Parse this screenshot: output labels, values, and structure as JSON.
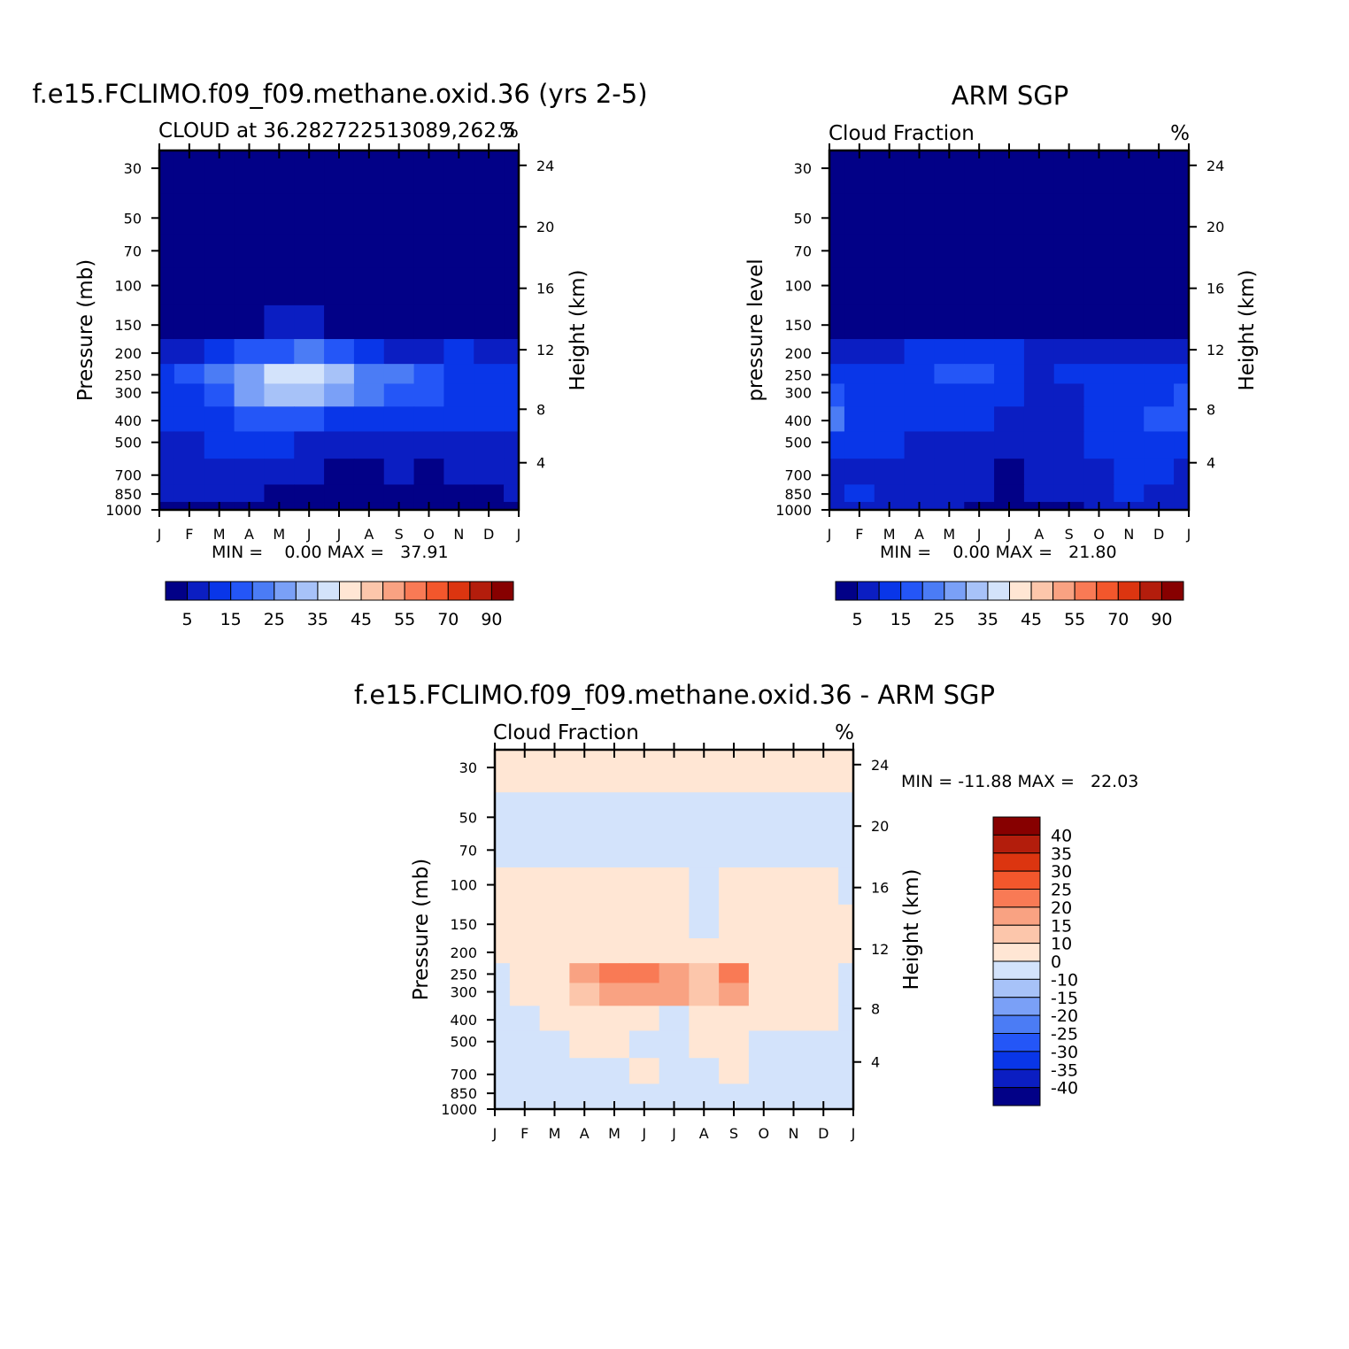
{
  "panels": {
    "model": {
      "main_title": "f.e15.FCLIMO.f09_f09.methane.oxid.36 (yrs 2-5)",
      "left_string": "CLOUD at 36.282722513089,262.5",
      "right_string": "%",
      "ylabel_left": "Pressure (mb)",
      "ylabel_right": "Height (km)",
      "minmax": "MIN =    0.00 MAX =   37.91"
    },
    "obs": {
      "main_title": "ARM SGP",
      "left_string": "Cloud Fraction",
      "right_string": "%",
      "ylabel_left": "pressure level",
      "ylabel_right": "Height (km)",
      "minmax": "MIN =    0.00 MAX =   21.80"
    },
    "diff": {
      "main_title": "f.e15.FCLIMO.f09_f09.methane.oxid.36 - ARM SGP",
      "left_string": "Cloud Fraction",
      "right_string": "%",
      "ylabel_left": "Pressure (mb)",
      "ylabel_right": "Height (km)",
      "minmax": "MIN = -11.88 MAX =   22.03"
    }
  },
  "months": [
    "J",
    "F",
    "M",
    "A",
    "M",
    "J",
    "J",
    "A",
    "S",
    "O",
    "N",
    "D",
    "J"
  ],
  "pressure_ticks": [
    "30",
    "50",
    "70",
    "100",
    "150",
    "200",
    "250",
    "300",
    "400",
    "500",
    "700",
    "850",
    "1000"
  ],
  "height_ticks": [
    "24",
    "20",
    "16",
    "12",
    "8",
    "4"
  ],
  "colorbar_top": {
    "labels": [
      "5",
      "15",
      "25",
      "35",
      "45",
      "55",
      "70",
      "90"
    ],
    "colors": [
      "#020187",
      "#0b1ec2",
      "#0936e8",
      "#2456f7",
      "#4b7cf5",
      "#7aa0f7",
      "#a7c2f8",
      "#d3e3fb",
      "#ffe6d4",
      "#fcc6ab",
      "#f9a282",
      "#f97a55",
      "#f3572c",
      "#dc3510",
      "#b31d0c",
      "#870000"
    ]
  },
  "colorbar_diff": {
    "labels": [
      "40",
      "35",
      "30",
      "25",
      "20",
      "15",
      "10",
      "0",
      "-10",
      "-15",
      "-20",
      "-25",
      "-30",
      "-35",
      "-40"
    ],
    "colors": [
      "#870000",
      "#b31d0c",
      "#dc3510",
      "#f3572c",
      "#f97a55",
      "#f9a282",
      "#fcc6ab",
      "#ffe6d4",
      "#d3e3fb",
      "#a7c2f8",
      "#7aa0f7",
      "#4b7cf5",
      "#2456f7",
      "#0936e8",
      "#0b1ec2",
      "#020187"
    ]
  },
  "chart_data": [
    {
      "type": "heatmap",
      "title": "f.e15.FCLIMO.f09_f09.methane.oxid.36 (yrs 2-5)",
      "xlabel": "",
      "ylabel": "Pressure (mb)",
      "x": [
        "J",
        "F",
        "M",
        "A",
        "M",
        "J",
        "J",
        "A",
        "S",
        "O",
        "N",
        "D",
        "J"
      ],
      "y": [
        30,
        50,
        70,
        100,
        150,
        200,
        250,
        300,
        400,
        500,
        700,
        850,
        1000
      ],
      "units": "%",
      "ylim": [
        1000,
        25
      ],
      "values": [
        [
          0,
          0,
          0,
          0,
          0,
          0,
          0,
          0,
          0,
          0,
          0,
          0,
          0
        ],
        [
          0,
          0,
          0,
          0,
          0,
          0,
          0,
          0,
          0,
          0,
          0,
          0,
          0
        ],
        [
          0,
          0,
          0,
          0,
          0,
          0,
          0,
          0,
          0,
          0,
          0,
          0,
          0
        ],
        [
          0,
          0,
          0,
          0,
          0,
          0,
          0,
          0,
          0,
          0,
          0,
          0,
          0
        ],
        [
          2,
          2,
          3,
          3,
          5,
          5,
          4,
          3,
          2,
          2,
          2,
          2,
          2
        ],
        [
          8,
          9,
          12,
          15,
          18,
          20,
          15,
          10,
          9,
          9,
          10,
          9,
          8
        ],
        [
          12,
          15,
          20,
          28,
          35,
          37,
          30,
          22,
          20,
          18,
          14,
          13,
          12
        ],
        [
          12,
          14,
          18,
          25,
          30,
          32,
          28,
          22,
          19,
          16,
          14,
          13,
          12
        ],
        [
          10,
          12,
          14,
          16,
          18,
          17,
          14,
          13,
          12,
          11,
          10,
          10,
          10
        ],
        [
          8,
          9,
          10,
          11,
          10,
          8,
          7,
          8,
          9,
          9,
          9,
          9,
          8
        ],
        [
          6,
          6,
          6,
          6,
          6,
          5,
          4,
          4,
          5,
          4,
          5,
          6,
          6
        ],
        [
          5,
          5,
          5,
          5,
          4,
          3,
          2,
          2,
          2,
          3,
          3,
          3,
          5
        ],
        [
          4,
          4,
          4,
          4,
          3,
          2,
          1,
          1,
          1,
          2,
          2,
          2,
          4
        ]
      ],
      "min": 0.0,
      "max": 37.91
    },
    {
      "type": "heatmap",
      "title": "ARM SGP",
      "xlabel": "",
      "ylabel": "pressure level",
      "x": [
        "J",
        "F",
        "M",
        "A",
        "M",
        "J",
        "J",
        "A",
        "S",
        "O",
        "N",
        "D",
        "J"
      ],
      "y": [
        30,
        50,
        70,
        100,
        150,
        200,
        250,
        300,
        400,
        500,
        700,
        850,
        1000
      ],
      "units": "%",
      "ylim": [
        1000,
        25
      ],
      "values": [
        [
          0,
          0,
          0,
          0,
          0,
          0,
          0,
          0,
          0,
          0,
          0,
          0,
          0
        ],
        [
          0,
          0,
          0,
          0,
          0,
          0,
          0,
          0,
          0,
          0,
          0,
          0,
          0
        ],
        [
          0,
          0,
          0,
          0,
          0,
          0,
          0,
          0,
          0,
          0,
          0,
          0,
          0
        ],
        [
          0,
          0,
          0,
          0,
          0,
          0,
          0,
          0,
          0,
          0,
          0,
          0,
          0
        ],
        [
          0,
          0,
          0,
          0,
          1,
          1,
          1,
          0,
          0,
          0,
          0,
          0,
          0
        ],
        [
          5,
          6,
          8,
          10,
          11,
          11,
          10,
          6,
          5,
          5,
          5,
          6,
          5
        ],
        [
          14,
          13,
          12,
          13,
          15,
          16,
          12,
          9,
          10,
          12,
          12,
          13,
          14
        ],
        [
          15,
          14,
          12,
          12,
          13,
          13,
          11,
          9,
          9,
          11,
          13,
          14,
          15
        ],
        [
          21,
          14,
          11,
          11,
          11,
          10,
          8,
          7,
          8,
          11,
          14,
          15,
          18
        ],
        [
          12,
          11,
          10,
          9,
          9,
          9,
          7,
          7,
          8,
          11,
          12,
          12,
          12
        ],
        [
          9,
          9,
          9,
          8,
          6,
          6,
          4,
          5,
          7,
          9,
          10,
          10,
          9
        ],
        [
          7,
          11,
          8,
          7,
          7,
          6,
          4,
          5,
          7,
          9,
          12,
          9,
          7
        ],
        [
          6,
          6,
          6,
          6,
          5,
          4,
          3,
          3,
          4,
          5,
          5,
          5,
          6
        ]
      ],
      "min": 0.0,
      "max": 21.8
    },
    {
      "type": "heatmap",
      "title": "f.e15.FCLIMO.f09_f09.methane.oxid.36 - ARM SGP",
      "xlabel": "",
      "ylabel": "Pressure (mb)",
      "x": [
        "J",
        "F",
        "M",
        "A",
        "M",
        "J",
        "J",
        "A",
        "S",
        "O",
        "N",
        "D",
        "J"
      ],
      "y": [
        30,
        50,
        70,
        100,
        150,
        200,
        250,
        300,
        400,
        500,
        700,
        850,
        1000
      ],
      "units": "%",
      "ylim": [
        1000,
        25
      ],
      "values": [
        [
          0.5,
          0.5,
          0.5,
          0.5,
          0.5,
          0.5,
          0.5,
          0.5,
          0.5,
          0.5,
          0.5,
          0.5,
          0.5
        ],
        [
          -0.5,
          -0.5,
          -0.5,
          -0.5,
          -0.5,
          -0.5,
          -0.5,
          -0.5,
          -0.5,
          -0.5,
          -0.5,
          -0.5,
          -0.5
        ],
        [
          -0.5,
          -0.5,
          -0.5,
          -0.5,
          -0.5,
          -0.5,
          -0.5,
          -0.5,
          -0.5,
          -0.5,
          -0.5,
          -0.5,
          -0.5
        ],
        [
          0.5,
          0.5,
          0.5,
          0.5,
          0.5,
          0.5,
          0.5,
          -0.5,
          0.5,
          0.5,
          0.5,
          0.5,
          -0.5
        ],
        [
          2,
          2,
          3,
          3,
          4,
          4,
          3,
          -0.5,
          2,
          2,
          2,
          2,
          2
        ],
        [
          3,
          3,
          4,
          5,
          8,
          9,
          5,
          4,
          5,
          4,
          5,
          3,
          3
        ],
        [
          -0.5,
          1,
          8,
          15,
          22,
          20,
          18,
          10,
          20,
          8,
          2,
          1,
          -0.5
        ],
        [
          -0.5,
          1,
          5,
          12,
          18,
          19,
          15,
          13,
          16,
          5,
          1,
          0.5,
          -0.5
        ],
        [
          -0.5,
          -0.5,
          3,
          5,
          7,
          6,
          -0.5,
          2,
          4,
          1,
          1,
          1,
          -0.5
        ],
        [
          -0.5,
          -0.5,
          -0.5,
          2,
          1,
          -0.5,
          -0.5,
          1,
          1,
          -0.5,
          -0.5,
          -0.5,
          -0.5
        ],
        [
          -0.5,
          -0.5,
          -0.5,
          -0.5,
          -0.5,
          2,
          -0.5,
          -0.5,
          2,
          -0.5,
          -0.5,
          -0.5,
          -0.5
        ],
        [
          -0.5,
          -0.5,
          -0.5,
          -0.5,
          -0.5,
          -0.5,
          -0.5,
          -0.5,
          -0.5,
          -0.5,
          -0.5,
          -0.5,
          -0.5
        ],
        [
          -2,
          -0.5,
          -0.5,
          -0.5,
          -0.5,
          -0.5,
          -0.5,
          -0.5,
          -0.5,
          -0.5,
          -2,
          -0.5,
          -0.5
        ]
      ],
      "min": -11.88,
      "max": 22.03
    }
  ]
}
